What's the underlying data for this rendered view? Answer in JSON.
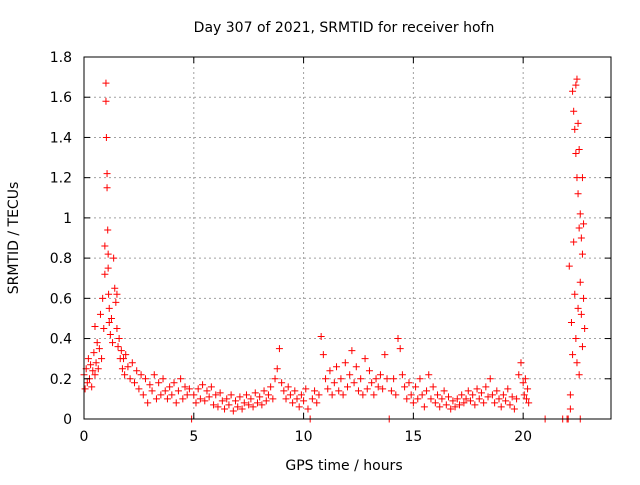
{
  "chart_data": {
    "type": "scatter",
    "title": "Day 307 of 2021, SRMTID for receiver hofn",
    "xlabel": "GPS time / hours",
    "ylabel": "SRMTID / TECUs",
    "xlim": [
      0,
      24
    ],
    "ylim": [
      0,
      1.8
    ],
    "xticks": [
      "0",
      "5",
      "10",
      "15",
      "20"
    ],
    "yticks": [
      "0",
      "0.2",
      "0.4",
      "0.6",
      "0.8",
      "1",
      "1.2",
      "1.4",
      "1.6",
      "1.8"
    ],
    "grid": true,
    "marker": "plus",
    "marker_color": "#ff0000",
    "series": [
      {
        "name": "SRMTID",
        "points": [
          [
            0.0,
            0.22
          ],
          [
            0.05,
            0.15
          ],
          [
            0.1,
            0.25
          ],
          [
            0.15,
            0.18
          ],
          [
            0.2,
            0.3
          ],
          [
            0.25,
            0.2
          ],
          [
            0.3,
            0.27
          ],
          [
            0.35,
            0.16
          ],
          [
            0.4,
            0.24
          ],
          [
            0.45,
            0.33
          ],
          [
            0.5,
            0.22
          ],
          [
            0.5,
            0.46
          ],
          [
            0.55,
            0.28
          ],
          [
            0.6,
            0.38
          ],
          [
            0.65,
            0.25
          ],
          [
            0.7,
            0.35
          ],
          [
            0.75,
            0.52
          ],
          [
            0.8,
            0.3
          ],
          [
            0.85,
            0.6
          ],
          [
            0.9,
            0.45
          ],
          [
            0.95,
            0.86
          ],
          [
            0.95,
            0.72
          ],
          [
            1.0,
            1.67
          ],
          [
            1.0,
            1.58
          ],
          [
            1.02,
            1.4
          ],
          [
            1.05,
            1.22
          ],
          [
            1.05,
            1.15
          ],
          [
            1.08,
            0.94
          ],
          [
            1.1,
            0.82
          ],
          [
            1.1,
            0.75
          ],
          [
            1.12,
            0.62
          ],
          [
            1.15,
            0.55
          ],
          [
            1.15,
            0.48
          ],
          [
            1.2,
            0.42
          ],
          [
            1.25,
            0.5
          ],
          [
            1.3,
            0.38
          ],
          [
            1.35,
            0.8
          ],
          [
            1.4,
            0.65
          ],
          [
            1.45,
            0.58
          ],
          [
            1.5,
            0.62
          ],
          [
            1.5,
            0.45
          ],
          [
            1.55,
            0.36
          ],
          [
            1.6,
            0.4
          ],
          [
            1.65,
            0.3
          ],
          [
            1.7,
            0.34
          ],
          [
            1.75,
            0.25
          ],
          [
            1.8,
            0.3
          ],
          [
            1.85,
            0.22
          ],
          [
            1.9,
            0.32
          ],
          [
            2.0,
            0.26
          ],
          [
            2.1,
            0.2
          ],
          [
            2.2,
            0.28
          ],
          [
            2.3,
            0.18
          ],
          [
            2.4,
            0.24
          ],
          [
            2.5,
            0.15
          ],
          [
            2.6,
            0.22
          ],
          [
            2.7,
            0.12
          ],
          [
            2.8,
            0.2
          ],
          [
            2.9,
            0.08
          ],
          [
            3.0,
            0.17
          ],
          [
            3.1,
            0.14
          ],
          [
            3.2,
            0.22
          ],
          [
            3.3,
            0.1
          ],
          [
            3.4,
            0.18
          ],
          [
            3.5,
            0.12
          ],
          [
            3.6,
            0.2
          ],
          [
            3.7,
            0.14
          ],
          [
            3.8,
            0.1
          ],
          [
            3.9,
            0.16
          ],
          [
            4.0,
            0.12
          ],
          [
            4.1,
            0.18
          ],
          [
            4.2,
            0.08
          ],
          [
            4.3,
            0.14
          ],
          [
            4.4,
            0.2
          ],
          [
            4.5,
            0.1
          ],
          [
            4.6,
            0.16
          ],
          [
            4.7,
            0.12
          ],
          [
            4.8,
            0.15
          ],
          [
            4.9,
            0.0
          ],
          [
            5.0,
            0.12
          ],
          [
            5.1,
            0.08
          ],
          [
            5.2,
            0.15
          ],
          [
            5.3,
            0.1
          ],
          [
            5.4,
            0.17
          ],
          [
            5.5,
            0.09
          ],
          [
            5.6,
            0.14
          ],
          [
            5.7,
            0.11
          ],
          [
            5.8,
            0.16
          ],
          [
            5.9,
            0.07
          ],
          [
            6.0,
            0.12
          ],
          [
            6.1,
            0.06
          ],
          [
            6.2,
            0.13
          ],
          [
            6.3,
            0.09
          ],
          [
            6.4,
            0.05
          ],
          [
            6.5,
            0.1
          ],
          [
            6.6,
            0.07
          ],
          [
            6.7,
            0.12
          ],
          [
            6.8,
            0.04
          ],
          [
            6.9,
            0.09
          ],
          [
            7.0,
            0.06
          ],
          [
            7.1,
            0.11
          ],
          [
            7.2,
            0.05
          ],
          [
            7.3,
            0.08
          ],
          [
            7.4,
            0.12
          ],
          [
            7.5,
            0.07
          ],
          [
            7.6,
            0.1
          ],
          [
            7.7,
            0.06
          ],
          [
            7.8,
            0.13
          ],
          [
            7.9,
            0.08
          ],
          [
            8.0,
            0.11
          ],
          [
            8.1,
            0.07
          ],
          [
            8.2,
            0.14
          ],
          [
            8.3,
            0.09
          ],
          [
            8.4,
            0.12
          ],
          [
            8.5,
            0.16
          ],
          [
            8.6,
            0.1
          ],
          [
            8.7,
            0.2
          ],
          [
            8.8,
            0.25
          ],
          [
            8.9,
            0.35
          ],
          [
            9.0,
            0.18
          ],
          [
            9.1,
            0.14
          ],
          [
            9.2,
            0.1
          ],
          [
            9.3,
            0.16
          ],
          [
            9.4,
            0.12
          ],
          [
            9.5,
            0.08
          ],
          [
            9.6,
            0.14
          ],
          [
            9.7,
            0.1
          ],
          [
            9.8,
            0.06
          ],
          [
            9.9,
            0.12
          ],
          [
            10.0,
            0.09
          ],
          [
            10.1,
            0.15
          ],
          [
            10.2,
            0.05
          ],
          [
            10.3,
            0.0
          ],
          [
            10.4,
            0.1
          ],
          [
            10.5,
            0.14
          ],
          [
            10.6,
            0.08
          ],
          [
            10.7,
            0.12
          ],
          [
            10.8,
            0.41
          ],
          [
            10.9,
            0.32
          ],
          [
            11.0,
            0.2
          ],
          [
            11.1,
            0.15
          ],
          [
            11.2,
            0.24
          ],
          [
            11.3,
            0.12
          ],
          [
            11.4,
            0.18
          ],
          [
            11.5,
            0.26
          ],
          [
            11.6,
            0.14
          ],
          [
            11.7,
            0.2
          ],
          [
            11.8,
            0.12
          ],
          [
            11.9,
            0.28
          ],
          [
            12.0,
            0.16
          ],
          [
            12.1,
            0.22
          ],
          [
            12.2,
            0.34
          ],
          [
            12.3,
            0.18
          ],
          [
            12.4,
            0.26
          ],
          [
            12.5,
            0.14
          ],
          [
            12.6,
            0.2
          ],
          [
            12.7,
            0.12
          ],
          [
            12.8,
            0.3
          ],
          [
            12.9,
            0.15
          ],
          [
            13.0,
            0.24
          ],
          [
            13.1,
            0.18
          ],
          [
            13.2,
            0.12
          ],
          [
            13.3,
            0.2
          ],
          [
            13.4,
            0.16
          ],
          [
            13.5,
            0.22
          ],
          [
            13.6,
            0.15
          ],
          [
            13.7,
            0.32
          ],
          [
            13.8,
            0.2
          ],
          [
            13.9,
            0.0
          ],
          [
            14.0,
            0.14
          ],
          [
            14.1,
            0.2
          ],
          [
            14.2,
            0.12
          ],
          [
            14.3,
            0.4
          ],
          [
            14.4,
            0.35
          ],
          [
            14.5,
            0.22
          ],
          [
            14.6,
            0.16
          ],
          [
            14.7,
            0.1
          ],
          [
            14.8,
            0.18
          ],
          [
            14.9,
            0.12
          ],
          [
            15.0,
            0.08
          ],
          [
            15.1,
            0.16
          ],
          [
            15.2,
            0.1
          ],
          [
            15.3,
            0.2
          ],
          [
            15.4,
            0.12
          ],
          [
            15.5,
            0.06
          ],
          [
            15.6,
            0.14
          ],
          [
            15.7,
            0.22
          ],
          [
            15.8,
            0.1
          ],
          [
            15.9,
            0.16
          ],
          [
            16.0,
            0.08
          ],
          [
            16.1,
            0.12
          ],
          [
            16.2,
            0.06
          ],
          [
            16.3,
            0.1
          ],
          [
            16.4,
            0.14
          ],
          [
            16.5,
            0.07
          ],
          [
            16.6,
            0.11
          ],
          [
            16.7,
            0.05
          ],
          [
            16.8,
            0.09
          ],
          [
            16.9,
            0.06
          ],
          [
            17.0,
            0.1
          ],
          [
            17.1,
            0.07
          ],
          [
            17.2,
            0.12
          ],
          [
            17.3,
            0.08
          ],
          [
            17.4,
            0.1
          ],
          [
            17.5,
            0.14
          ],
          [
            17.6,
            0.09
          ],
          [
            17.7,
            0.12
          ],
          [
            17.8,
            0.07
          ],
          [
            17.9,
            0.15
          ],
          [
            18.0,
            0.1
          ],
          [
            18.1,
            0.13
          ],
          [
            18.2,
            0.08
          ],
          [
            18.3,
            0.16
          ],
          [
            18.4,
            0.11
          ],
          [
            18.5,
            0.2
          ],
          [
            18.6,
            0.12
          ],
          [
            18.7,
            0.08
          ],
          [
            18.8,
            0.14
          ],
          [
            18.9,
            0.1
          ],
          [
            19.0,
            0.06
          ],
          [
            19.1,
            0.12
          ],
          [
            19.2,
            0.09
          ],
          [
            19.3,
            0.15
          ],
          [
            19.4,
            0.07
          ],
          [
            19.5,
            0.11
          ],
          [
            19.6,
            0.05
          ],
          [
            19.7,
            0.1
          ],
          [
            19.8,
            0.22
          ],
          [
            19.9,
            0.28
          ],
          [
            20.0,
            0.18
          ],
          [
            20.05,
            0.12
          ],
          [
            20.1,
            0.2
          ],
          [
            20.15,
            0.1
          ],
          [
            20.2,
            0.15
          ],
          [
            20.25,
            0.08
          ],
          [
            21.0,
            0.0
          ],
          [
            21.8,
            0.0
          ],
          [
            22.0,
            0.0
          ],
          [
            22.05,
            0.0
          ],
          [
            22.1,
            0.76
          ],
          [
            22.15,
            0.05
          ],
          [
            22.15,
            0.12
          ],
          [
            22.2,
            0.48
          ],
          [
            22.25,
            1.63
          ],
          [
            22.25,
            0.32
          ],
          [
            22.3,
            1.53
          ],
          [
            22.3,
            0.88
          ],
          [
            22.35,
            1.44
          ],
          [
            22.35,
            0.62
          ],
          [
            22.4,
            1.66
          ],
          [
            22.4,
            1.32
          ],
          [
            22.4,
            0.4
          ],
          [
            22.45,
            1.69
          ],
          [
            22.45,
            1.2
          ],
          [
            22.45,
            0.28
          ],
          [
            22.5,
            1.47
          ],
          [
            22.5,
            1.12
          ],
          [
            22.5,
            0.55
          ],
          [
            22.55,
            1.34
          ],
          [
            22.55,
            0.95
          ],
          [
            22.55,
            0.22
          ],
          [
            22.6,
            1.02
          ],
          [
            22.6,
            0.68
          ],
          [
            22.6,
            0.0
          ],
          [
            22.65,
            0.9
          ],
          [
            22.65,
            0.52
          ],
          [
            22.7,
            1.2
          ],
          [
            22.7,
            0.82
          ],
          [
            22.7,
            0.36
          ],
          [
            22.75,
            0.97
          ],
          [
            22.75,
            0.6
          ],
          [
            22.8,
            0.45
          ]
        ]
      }
    ]
  }
}
